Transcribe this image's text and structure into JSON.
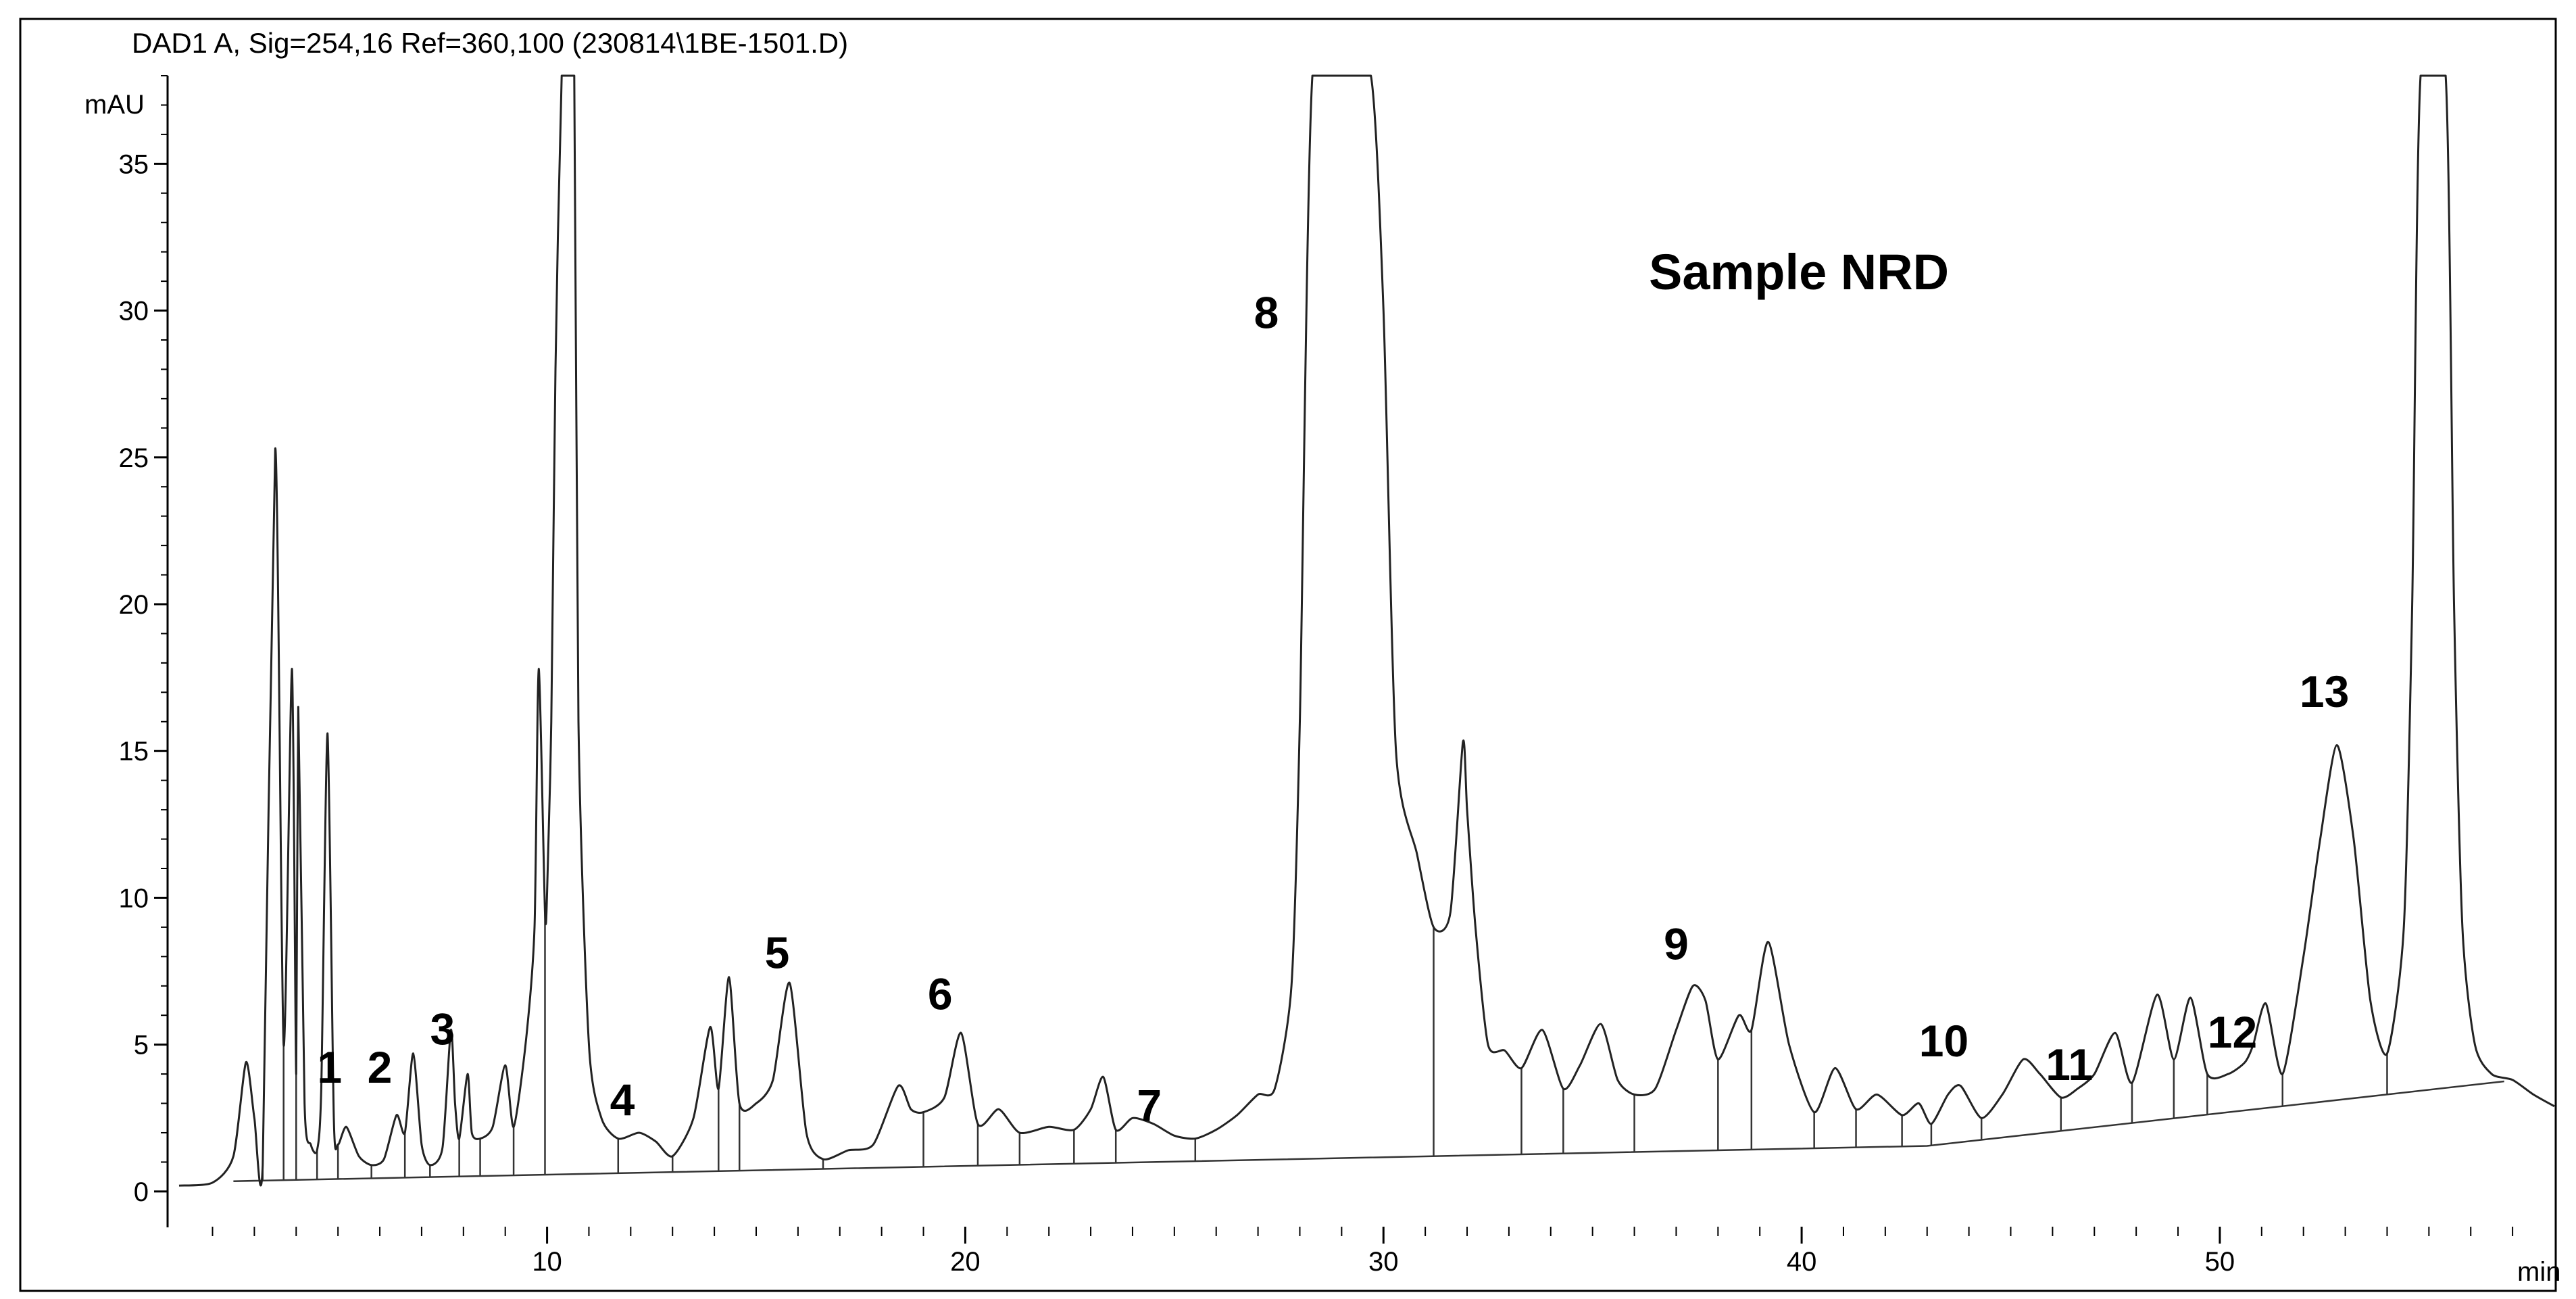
{
  "header": {
    "title": "DAD1 A, Sig=254,16 Ref=360,100 (230814\\1BE-1501.D)"
  },
  "chart_data": {
    "type": "line",
    "title": "",
    "annotation": "Sample NRD",
    "xlabel": "min",
    "ylabel": "mAU",
    "xlim": [
      1.2,
      58
    ],
    "ylim": [
      -1.2,
      38
    ],
    "xticks": [
      10,
      20,
      30,
      40,
      50
    ],
    "yticks": [
      0,
      5,
      10,
      15,
      20,
      25,
      30,
      35
    ],
    "grid": false,
    "line_color": "#222222",
    "series": [
      {
        "x": [
          1.2,
          2.0,
          2.5,
          2.8,
          3.0,
          3.2,
          3.5,
          3.7,
          3.9,
          4.0,
          4.05,
          4.2,
          4.35,
          4.5,
          4.6,
          4.75,
          4.9,
          5.0,
          5.2,
          5.5,
          5.8,
          6.1,
          6.4,
          6.6,
          6.8,
          7.0,
          7.2,
          7.5,
          7.7,
          7.8,
          7.9,
          8.1,
          8.2,
          8.4,
          8.7,
          9.0,
          9.2,
          9.5,
          9.7,
          9.8,
          9.95,
          10.0,
          10.1,
          10.2,
          10.35,
          10.5,
          10.65,
          10.75,
          11.0,
          11.3,
          11.7,
          12.2,
          12.6,
          13.0,
          13.5,
          13.9,
          14.1,
          14.35,
          14.6,
          15.0,
          15.4,
          15.8,
          16.2,
          16.6,
          17.2,
          17.8,
          18.4,
          18.7,
          19.0,
          19.5,
          19.9,
          20.3,
          20.8,
          21.3,
          22.0,
          22.6,
          23.0,
          23.3,
          23.6,
          24.0,
          24.5,
          25.0,
          25.5,
          26.0,
          26.5,
          27.0,
          27.4,
          27.8,
          28.0,
          28.3,
          29.0,
          29.7,
          30.0,
          30.3,
          30.8,
          31.2,
          31.6,
          31.9,
          32.0,
          32.2,
          32.5,
          32.9,
          33.3,
          33.8,
          34.3,
          34.7,
          35.2,
          35.6,
          36.0,
          36.5,
          37.0,
          37.4,
          37.7,
          38.0,
          38.5,
          38.8,
          39.2,
          39.7,
          40.3,
          40.8,
          41.3,
          41.8,
          42.4,
          42.8,
          43.1,
          43.5,
          43.8,
          44.3,
          44.8,
          45.3,
          45.7,
          46.2,
          46.6,
          47.0,
          47.5,
          47.9,
          48.5,
          48.9,
          49.3,
          49.7,
          50.2,
          50.6,
          50.8,
          51.1,
          51.5,
          52.0,
          52.4,
          52.8,
          53.2,
          53.6,
          54.0,
          54.4,
          54.6,
          54.8,
          55.4,
          55.6,
          55.8,
          56.1,
          56.5,
          57.0,
          57.5,
          58.0
        ],
        "y": [
          0.2,
          0.3,
          1.2,
          4.4,
          2.5,
          0.9,
          25.3,
          5.0,
          17.8,
          4.0,
          16.5,
          3.0,
          1.6,
          1.4,
          3.5,
          15.6,
          2.5,
          1.6,
          2.2,
          1.2,
          0.9,
          1.1,
          2.6,
          2.0,
          4.7,
          1.6,
          0.9,
          1.5,
          5.5,
          3.0,
          1.8,
          4.0,
          2.0,
          1.8,
          2.2,
          4.3,
          2.2,
          5.2,
          9.0,
          17.8,
          9.5,
          10.2,
          16.0,
          28.0,
          38.0,
          38.0,
          38.0,
          16.0,
          5.0,
          2.5,
          1.8,
          2.0,
          1.7,
          1.2,
          2.5,
          5.6,
          3.5,
          7.3,
          3.0,
          3.0,
          3.8,
          7.1,
          2.0,
          1.1,
          1.4,
          1.6,
          3.6,
          2.8,
          2.7,
          3.2,
          5.4,
          2.3,
          2.8,
          2.0,
          2.2,
          2.1,
          2.8,
          3.9,
          2.1,
          2.5,
          2.3,
          1.9,
          1.8,
          2.1,
          2.6,
          3.3,
          3.5,
          7.0,
          16.0,
          38.0,
          38.0,
          38.0,
          30.0,
          15.0,
          11.5,
          9.0,
          9.5,
          15.3,
          13.0,
          9.0,
          5.0,
          4.8,
          4.2,
          5.5,
          3.5,
          4.3,
          5.7,
          3.8,
          3.3,
          3.5,
          5.5,
          7.0,
          6.5,
          4.5,
          6.0,
          5.5,
          8.5,
          5.0,
          2.7,
          4.2,
          2.8,
          3.3,
          2.6,
          3.0,
          2.3,
          3.3,
          3.6,
          2.5,
          3.3,
          4.5,
          4.0,
          3.2,
          3.5,
          4.0,
          5.4,
          3.7,
          6.7,
          4.5,
          6.6,
          4.0,
          4.0,
          4.4,
          5.0,
          6.4,
          4.0,
          8.0,
          12.0,
          15.2,
          12.0,
          6.5,
          4.7,
          9.0,
          20.0,
          38.0,
          38.0,
          20.0,
          9.0,
          5.0,
          4.0,
          3.8,
          3.3,
          2.9
        ]
      }
    ],
    "peak_labels": [
      {
        "text": "1",
        "x": 4.8,
        "y": 3.7
      },
      {
        "text": "2",
        "x": 6.0,
        "y": 3.7
      },
      {
        "text": "3",
        "x": 7.5,
        "y": 5.0
      },
      {
        "text": "4",
        "x": 11.8,
        "y": 2.6
      },
      {
        "text": "5",
        "x": 15.5,
        "y": 7.6
      },
      {
        "text": "6",
        "x": 19.4,
        "y": 6.2
      },
      {
        "text": "7",
        "x": 24.4,
        "y": 2.4
      },
      {
        "text": "8",
        "x": 27.2,
        "y": 29.4
      },
      {
        "text": "9",
        "x": 37.0,
        "y": 7.9
      },
      {
        "text": "10",
        "x": 43.4,
        "y": 4.6
      },
      {
        "text": "11",
        "x": 46.4,
        "y": 3.8
      },
      {
        "text": "12",
        "x": 50.3,
        "y": 4.9
      },
      {
        "text": "13",
        "x": 52.5,
        "y": 16.5
      }
    ]
  }
}
